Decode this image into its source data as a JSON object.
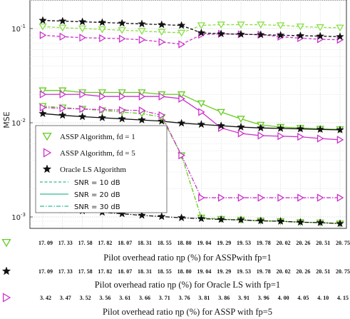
{
  "chart_data": {
    "type": "line",
    "ylabel": "MSE",
    "yscale": "log",
    "ylim": [
      0.0007,
      0.2
    ],
    "ytick_labels": [
      "10-3",
      "10-2",
      "10-1"
    ],
    "grid": true,
    "legend_position": "center-left",
    "legend": [
      {
        "label": "ASSP Algorithm, fd = 1",
        "marker": "triangle-down",
        "color": "#66cc22"
      },
      {
        "label": "ASSP Algorithm, fd = 5",
        "marker": "triangle-right",
        "color": "#cc33cc"
      },
      {
        "label": "Oracle LS Algorithm",
        "marker": "star",
        "color": "#111111"
      },
      {
        "label": "SNR = 10 dB",
        "linestyle": "dashed"
      },
      {
        "label": "SNR = 20 dB",
        "linestyle": "solid"
      },
      {
        "label": "SNR = 30 dB",
        "linestyle": "dashdot"
      }
    ],
    "x_axes": [
      {
        "title": "Pilot overhead ratio ηp (%) for ASSPwith fp=1",
        "marker": "triangle-down",
        "color": "#66cc22",
        "ticks": [
          "17. 09",
          "17. 33",
          "17. 58",
          "17. 82",
          "18. 07",
          "18. 31",
          "18. 55",
          "18. 80",
          "19. 04",
          "19. 29",
          "19. 53",
          "19. 78",
          "20. 02",
          "20. 26",
          "20. 51",
          "20. 75"
        ]
      },
      {
        "title": "Pilot overhead ratio ηp (%) for Oracle LS with fp=1",
        "marker": "star",
        "color": "#111111",
        "ticks": [
          "17. 09",
          "17. 33",
          "17. 58",
          "17. 82",
          "18. 07",
          "18. 31",
          "18. 55",
          "18. 80",
          "19. 04",
          "19. 29",
          "19. 53",
          "19. 78",
          "20. 02",
          "20. 26",
          "20. 51",
          "20. 75"
        ]
      },
      {
        "title": "Pilot overhead ratio ηp (%) for ASSP with fp=5",
        "marker": "triangle-right",
        "color": "#cc33cc",
        "ticks": [
          "3. 42",
          "3. 47",
          "3. 52",
          "3. 56",
          "3. 61",
          "3. 66",
          "3. 71",
          "3. 76",
          "3. 81",
          "3. 86",
          "3. 91",
          "3. 96",
          "4. 00",
          "4. 05",
          "4. 10",
          "4. 15"
        ]
      }
    ],
    "series": [
      {
        "name": "ASSP Algorithm, fd = 1 (SNR = 10 dB)",
        "color": "#88e044",
        "marker": "triangle-down",
        "linestyle": "dashed",
        "values": [
          0.105,
          0.102,
          0.1,
          0.098,
          0.096,
          0.094,
          0.092,
          0.09,
          0.108,
          0.11,
          0.11,
          0.11,
          0.108,
          0.105,
          0.103,
          0.102
        ]
      },
      {
        "name": "ASSP Algorithm, fd = 5 (SNR = 10 dB)",
        "color": "#cc33cc",
        "marker": "triangle-right",
        "linestyle": "dashed",
        "values": [
          0.085,
          0.082,
          0.08,
          0.079,
          0.078,
          0.076,
          0.072,
          0.068,
          0.086,
          0.088,
          0.087,
          0.086,
          0.082,
          0.079,
          0.077,
          0.076
        ]
      },
      {
        "name": "Oracle LS Algorithm (SNR = 10 dB)",
        "color": "#111111",
        "marker": "star",
        "linestyle": "dashed",
        "values": [
          0.122,
          0.12,
          0.118,
          0.116,
          0.114,
          0.112,
          0.11,
          0.108,
          0.09,
          0.088,
          0.087,
          0.086,
          0.085,
          0.084,
          0.083,
          0.082
        ]
      },
      {
        "name": "ASSP Algorithm, fd = 1 (SNR = 20 dB)",
        "color": "#66cc22",
        "marker": "triangle-down",
        "linestyle": "solid",
        "values": [
          0.022,
          0.022,
          0.021,
          0.021,
          0.021,
          0.021,
          0.02,
          0.02,
          0.016,
          0.013,
          0.011,
          0.0095,
          0.009,
          0.0088,
          0.0086,
          0.0085
        ]
      },
      {
        "name": "ASSP Algorithm, fd = 5 (SNR = 20 dB)",
        "color": "#cc33cc",
        "marker": "triangle-right",
        "linestyle": "solid",
        "values": [
          0.02,
          0.02,
          0.02,
          0.019,
          0.019,
          0.019,
          0.019,
          0.018,
          0.013,
          0.0088,
          0.0077,
          0.0073,
          0.0072,
          0.0071,
          0.0068,
          0.0066
        ]
      },
      {
        "name": "Oracle LS Algorithm (SNR = 20 dB)",
        "color": "#111111",
        "marker": "star",
        "linestyle": "solid",
        "values": [
          0.0125,
          0.012,
          0.0116,
          0.0113,
          0.011,
          0.0107,
          0.0104,
          0.0099,
          0.0096,
          0.0093,
          0.009,
          0.0088,
          0.0087,
          0.0086,
          0.0085,
          0.0084
        ]
      },
      {
        "name": "ASSP Algorithm, fd = 1 (SNR = 30 dB)",
        "color": "#66cc22",
        "marker": "triangle-down",
        "linestyle": "dashdot",
        "values": [
          0.015,
          0.0145,
          0.014,
          0.0135,
          0.013,
          0.0125,
          0.0115,
          0.0045,
          0.00098,
          0.00095,
          0.00093,
          0.00091,
          0.0009,
          0.00088,
          0.00087,
          0.00085
        ]
      },
      {
        "name": "ASSP Algorithm, fd = 5 (SNR = 30 dB)",
        "color": "#cc33cc",
        "marker": "triangle-right",
        "linestyle": "dashdot",
        "values": [
          0.0145,
          0.0142,
          0.014,
          0.0138,
          0.0136,
          0.0135,
          0.012,
          0.0045,
          0.0016,
          0.0016,
          0.0016,
          0.0016,
          0.0016,
          0.0016,
          0.0016,
          0.0016
        ]
      },
      {
        "name": "Oracle LS Algorithm (SNR = 30 dB)",
        "color": "#111111",
        "marker": "star",
        "linestyle": "dashdot",
        "values": [
          0.00122,
          0.00119,
          0.00116,
          0.00112,
          0.00108,
          0.00104,
          0.00101,
          0.00098,
          0.00096,
          0.00094,
          0.00093,
          0.00091,
          0.0009,
          0.00088,
          0.00087,
          0.00085
        ]
      }
    ]
  }
}
